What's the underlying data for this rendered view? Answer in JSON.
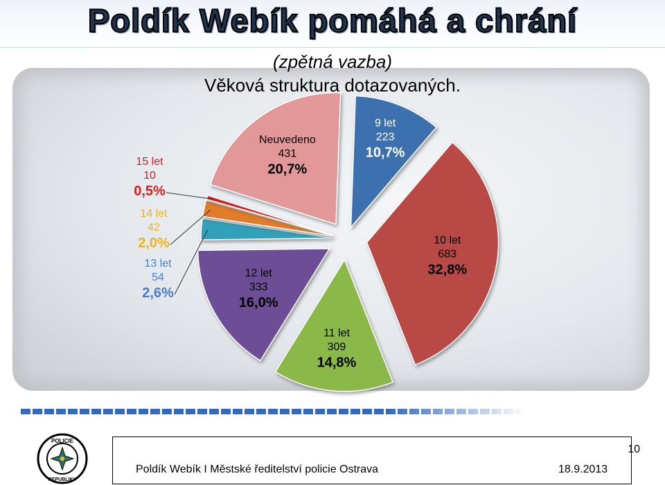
{
  "header": {
    "title": "Poldík Webík pomáhá a chrání",
    "subtitle": "(zpětná vazba)",
    "heading": "Věková struktura dotazovaných."
  },
  "chart_data": {
    "type": "pie",
    "slices": [
      {
        "label": "9 let",
        "count": 223,
        "percent": "10,7%",
        "value": 10.7,
        "color": "#3d6fae",
        "label_color": "#ffffff"
      },
      {
        "label": "10 let",
        "count": 683,
        "percent": "32,8%",
        "value": 32.8,
        "color": "#b94a45",
        "label_color": "#000000"
      },
      {
        "label": "11 let",
        "count": 309,
        "percent": "14,8%",
        "value": 14.8,
        "color": "#8ab848",
        "label_color": "#000000"
      },
      {
        "label": "12 let",
        "count": 333,
        "percent": "16,0%",
        "value": 16.0,
        "color": "#6c4d96",
        "label_color": "#000000"
      },
      {
        "label": "13 let",
        "count": 54,
        "percent": "2,6%",
        "value": 2.6,
        "color": "#33a0b8",
        "label_color": "#4a7fc1"
      },
      {
        "label": "14 let",
        "count": 42,
        "percent": "2,0%",
        "value": 2.0,
        "color": "#e07b2a",
        "label_color": "#f2b21b"
      },
      {
        "label": "15 let",
        "count": 10,
        "percent": "0,5%",
        "value": 0.5,
        "color": "#d42020",
        "label_color": "#d42020"
      },
      {
        "label": "Neuvedeno",
        "count": 431,
        "percent": "20,7%",
        "value": 20.7,
        "color": "#e29898",
        "label_color": "#000000"
      }
    ]
  },
  "footer": {
    "page_number": "10",
    "text": "Poldík Webík I Městské ředitelství policie Ostrava",
    "date": "18.9.2013",
    "logo_text": "POLICIE ČESKÉ REPUBLIKY"
  }
}
